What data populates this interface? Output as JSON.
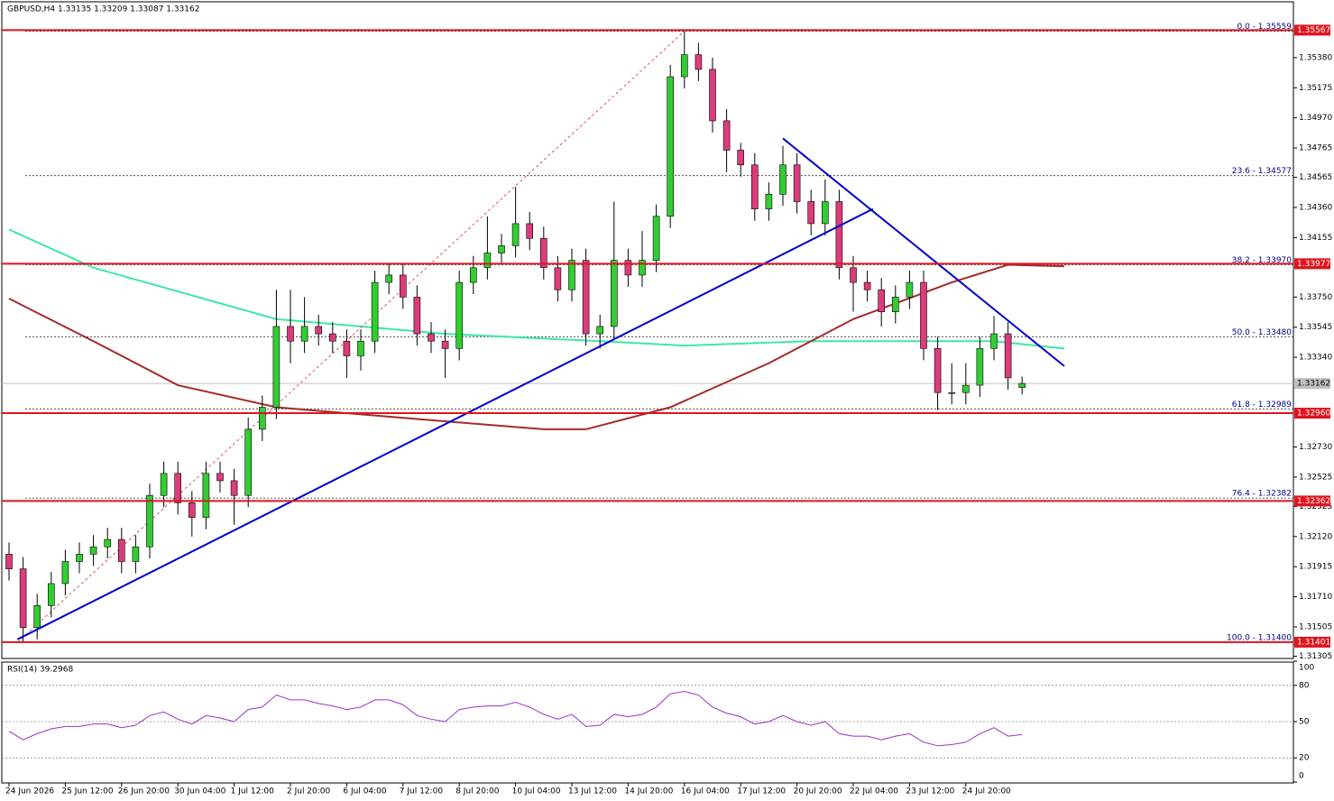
{
  "chart_data": {
    "type": "candlestick",
    "header": "GBPUSD,H4  1.33135 1.33209 1.33087 1.33162",
    "ylim": [
      1.3129,
      1.3576
    ],
    "yticks": [
      {
        "value": 1.3538,
        "label": "1.35380"
      },
      1.35175,
      {
        "value": 1.3497,
        "label": "1.34970"
      },
      1.34765,
      1.34565,
      {
        "value": 1.3436,
        "label": "1.34360"
      },
      1.34155,
      {
        "value": 1.3375,
        "label": "1.33750"
      },
      1.33545,
      {
        "value": 1.3334,
        "label": "1.33340"
      },
      {
        "value": 1.3273,
        "label": "1.32730"
      },
      1.32525,
      1.32325,
      {
        "value": 1.3212,
        "label": "1.32120"
      },
      1.31915,
      {
        "value": 1.3171,
        "label": "1.31710"
      },
      1.31505,
      1.31305
    ],
    "categories": [
      "24 Jun 2026",
      "25 Jun 12:00",
      "26 Jun 20:00",
      "30 Jun 04:00",
      "1 Jul 12:00",
      "2 Jul 20:00",
      "6 Jul 04:00",
      "7 Jul 12:00",
      "8 Jul 20:00",
      "10 Jul 04:00",
      "13 Jul 12:00",
      "14 Jul 20:00",
      "16 Jul 04:00",
      "17 Jul 12:00",
      "20 Jul 20:00",
      "22 Jul 04:00",
      "23 Jul 12:00",
      "24 Jul 20:00"
    ],
    "up_color": "#32cd32",
    "down_color": "#db3c7c",
    "candles": {
      "open": [
        1.32,
        1.319,
        1.315,
        1.3165,
        1.318,
        1.3195,
        1.32,
        1.3205,
        1.321,
        1.3195,
        1.3205,
        1.324,
        1.3255,
        1.3235,
        1.3225,
        1.3255,
        1.325,
        1.324,
        1.3285,
        1.33,
        1.3355,
        1.3345,
        1.3355,
        1.335,
        1.3345,
        1.3335,
        1.3345,
        1.3385,
        1.339,
        1.3375,
        1.335,
        1.3345,
        1.334,
        1.3385,
        1.3395,
        1.3405,
        1.341,
        1.3425,
        1.3415,
        1.3395,
        1.338,
        1.34,
        1.335,
        1.3355,
        1.34,
        1.339,
        1.34,
        1.343,
        1.3525,
        1.354,
        1.353,
        1.3495,
        1.3475,
        1.3465,
        1.3435,
        1.3445,
        1.3465,
        1.344,
        1.3425,
        1.344,
        1.3395,
        1.3385,
        1.338,
        1.3365,
        1.3375,
        1.3385,
        1.334,
        1.331,
        1.331,
        1.3315,
        1.334,
        1.335,
        1.33135
      ],
      "high": [
        1.3208,
        1.3198,
        1.3173,
        1.3188,
        1.3203,
        1.3208,
        1.3213,
        1.3218,
        1.3218,
        1.3213,
        1.3248,
        1.3263,
        1.3263,
        1.3243,
        1.3263,
        1.3263,
        1.3258,
        1.3293,
        1.3308,
        1.338,
        1.338,
        1.3375,
        1.3363,
        1.3358,
        1.3353,
        1.3353,
        1.3393,
        1.3398,
        1.3398,
        1.3383,
        1.3358,
        1.3353,
        1.3393,
        1.3403,
        1.343,
        1.3418,
        1.345,
        1.3433,
        1.3423,
        1.3403,
        1.3408,
        1.3408,
        1.3363,
        1.344,
        1.3408,
        1.342,
        1.3438,
        1.3533,
        1.3556,
        1.3548,
        1.3538,
        1.3503,
        1.348,
        1.3473,
        1.3453,
        1.3478,
        1.3473,
        1.3448,
        1.3455,
        1.3448,
        1.3403,
        1.3393,
        1.3388,
        1.3383,
        1.3393,
        1.3393,
        1.3348,
        1.333,
        1.333,
        1.3348,
        1.3362,
        1.3358,
        1.33209
      ],
      "low": [
        1.3182,
        1.314,
        1.3142,
        1.3157,
        1.3172,
        1.3187,
        1.3192,
        1.3197,
        1.3187,
        1.3187,
        1.3197,
        1.3232,
        1.3227,
        1.3212,
        1.3217,
        1.3242,
        1.322,
        1.3232,
        1.3277,
        1.3292,
        1.333,
        1.3337,
        1.3342,
        1.3337,
        1.332,
        1.3325,
        1.3337,
        1.3377,
        1.3367,
        1.3342,
        1.3337,
        1.332,
        1.3332,
        1.3377,
        1.3387,
        1.3397,
        1.3402,
        1.3407,
        1.3387,
        1.3372,
        1.3372,
        1.3342,
        1.334,
        1.3347,
        1.3382,
        1.3382,
        1.3392,
        1.3422,
        1.3517,
        1.3522,
        1.3487,
        1.346,
        1.3457,
        1.3427,
        1.3427,
        1.3437,
        1.3432,
        1.3417,
        1.3417,
        1.3387,
        1.3365,
        1.3372,
        1.3355,
        1.3357,
        1.3367,
        1.3332,
        1.3298,
        1.3302,
        1.3302,
        1.3307,
        1.3332,
        1.3312,
        1.33087
      ],
      "close": [
        1.319,
        1.315,
        1.3165,
        1.318,
        1.3195,
        1.32,
        1.3205,
        1.321,
        1.3195,
        1.3205,
        1.324,
        1.3255,
        1.3235,
        1.3225,
        1.3255,
        1.325,
        1.324,
        1.3285,
        1.33,
        1.3355,
        1.3345,
        1.3355,
        1.335,
        1.3345,
        1.3335,
        1.3345,
        1.3385,
        1.339,
        1.3375,
        1.335,
        1.3345,
        1.334,
        1.3385,
        1.3395,
        1.3405,
        1.341,
        1.3425,
        1.3415,
        1.3395,
        1.338,
        1.34,
        1.335,
        1.3355,
        1.34,
        1.339,
        1.34,
        1.343,
        1.3525,
        1.354,
        1.353,
        1.3495,
        1.3475,
        1.3465,
        1.3435,
        1.3445,
        1.3465,
        1.344,
        1.3425,
        1.344,
        1.3395,
        1.3385,
        1.338,
        1.3365,
        1.3375,
        1.3385,
        1.334,
        1.331,
        1.331,
        1.3315,
        1.334,
        1.335,
        1.332,
        1.33162
      ]
    },
    "moving_averages": [
      {
        "color": "#3ee8a4",
        "x": [
          0,
          6,
          19,
          31,
          42,
          48,
          57,
          64,
          70,
          75
        ],
        "values": [
          1.3421,
          1.3395,
          1.336,
          1.335,
          1.3345,
          1.3342,
          1.3345,
          1.3345,
          1.3345,
          1.334
        ]
      },
      {
        "color": "#a52a2a",
        "x": [
          0,
          6,
          12,
          19,
          29,
          38,
          41,
          47,
          54,
          60,
          67,
          71,
          75
        ],
        "values": [
          1.3374,
          1.3345,
          1.3315,
          1.33,
          1.3292,
          1.3285,
          1.3285,
          1.33,
          1.333,
          1.336,
          1.3385,
          1.3397,
          1.3396
        ]
      }
    ],
    "trendlines": [
      {
        "color": "#0000cd",
        "x": [
          0.6,
          61.4
        ],
        "y": [
          1.3142,
          1.3435
        ]
      },
      {
        "color": "#0000cd",
        "x": [
          55,
          75
        ],
        "y": [
          1.3483,
          1.3328
        ]
      }
    ],
    "fib_line": {
      "color": "#cc3333",
      "x": [
        0.6,
        48
      ],
      "y": [
        1.314,
        1.3556
      ]
    },
    "levels": [
      {
        "value": 1.35567,
        "label": "1.35567"
      },
      {
        "value": 1.33977,
        "label": "1.33977"
      },
      {
        "value": 1.3296,
        "label": "1.32960"
      },
      {
        "value": 1.32362,
        "label": "1.32362"
      },
      {
        "value": 1.31401,
        "label": "1.31401"
      }
    ],
    "level_color": "#e0141e",
    "fib_levels": [
      {
        "price": 1.35559,
        "label": "0.0 - 1.35559"
      },
      {
        "price": 1.34577,
        "label": "23.6 - 1.34577"
      },
      {
        "price": 1.3397,
        "label": "38.2 - 1.33970"
      },
      {
        "price": 1.3348,
        "label": "50.0 - 1.33480"
      },
      {
        "price": 1.32989,
        "label": "61.8 - 1.32989"
      },
      {
        "price": 1.32382,
        "label": "76.4 - 1.32382"
      },
      {
        "price": 1.314,
        "label": "100.0 - 1.31400"
      }
    ],
    "current_price": {
      "value": 1.33162,
      "label": "1.33162"
    },
    "rsi": {
      "label": "RSI(14) 39.2968",
      "color": "#9932cc",
      "ylim": [
        0,
        100
      ],
      "yticks": [
        100,
        80,
        50,
        20,
        0
      ],
      "levels": [
        80,
        50,
        20
      ],
      "values": [
        42,
        35,
        40,
        44,
        46,
        46,
        48,
        48,
        45,
        47,
        55,
        58,
        52,
        48,
        55,
        53,
        50,
        60,
        62,
        72,
        68,
        68,
        65,
        63,
        60,
        62,
        68,
        68,
        64,
        55,
        52,
        50,
        60,
        62,
        63,
        63,
        66,
        62,
        56,
        52,
        56,
        46,
        47,
        56,
        54,
        56,
        62,
        73,
        75,
        72,
        62,
        57,
        54,
        48,
        50,
        55,
        50,
        47,
        50,
        40,
        38,
        38,
        35,
        38,
        40,
        33,
        30,
        31,
        33,
        40,
        45,
        38,
        39.2968
      ]
    }
  }
}
